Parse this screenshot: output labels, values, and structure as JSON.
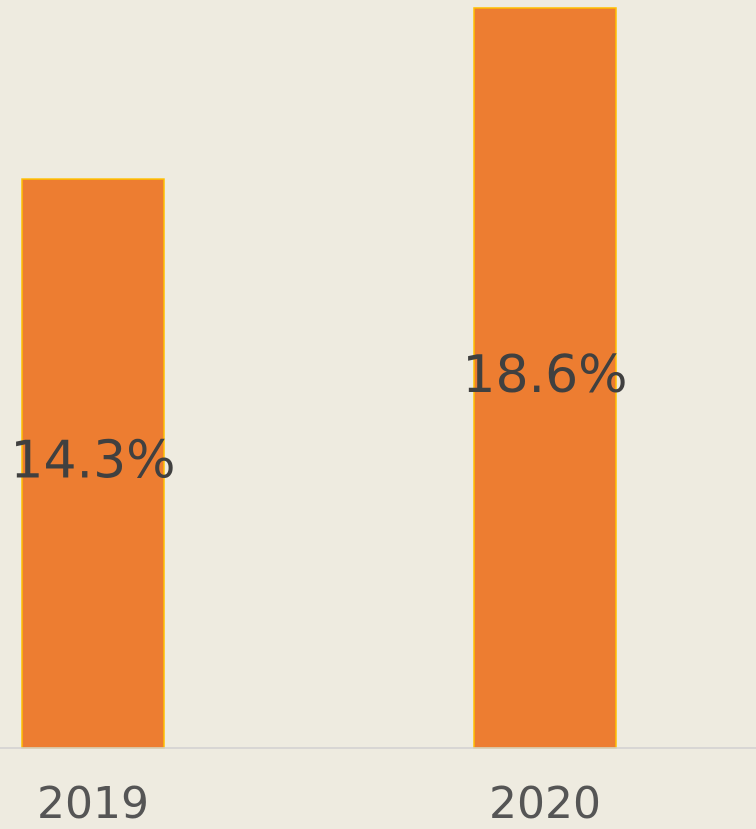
{
  "chart_data": {
    "type": "bar",
    "categories": [
      "2019",
      "2020"
    ],
    "values": [
      14.3,
      18.6
    ],
    "value_labels": [
      "14.3%",
      "18.6%"
    ],
    "color": "#ed7d31",
    "ylim": [
      0,
      18.8
    ]
  }
}
